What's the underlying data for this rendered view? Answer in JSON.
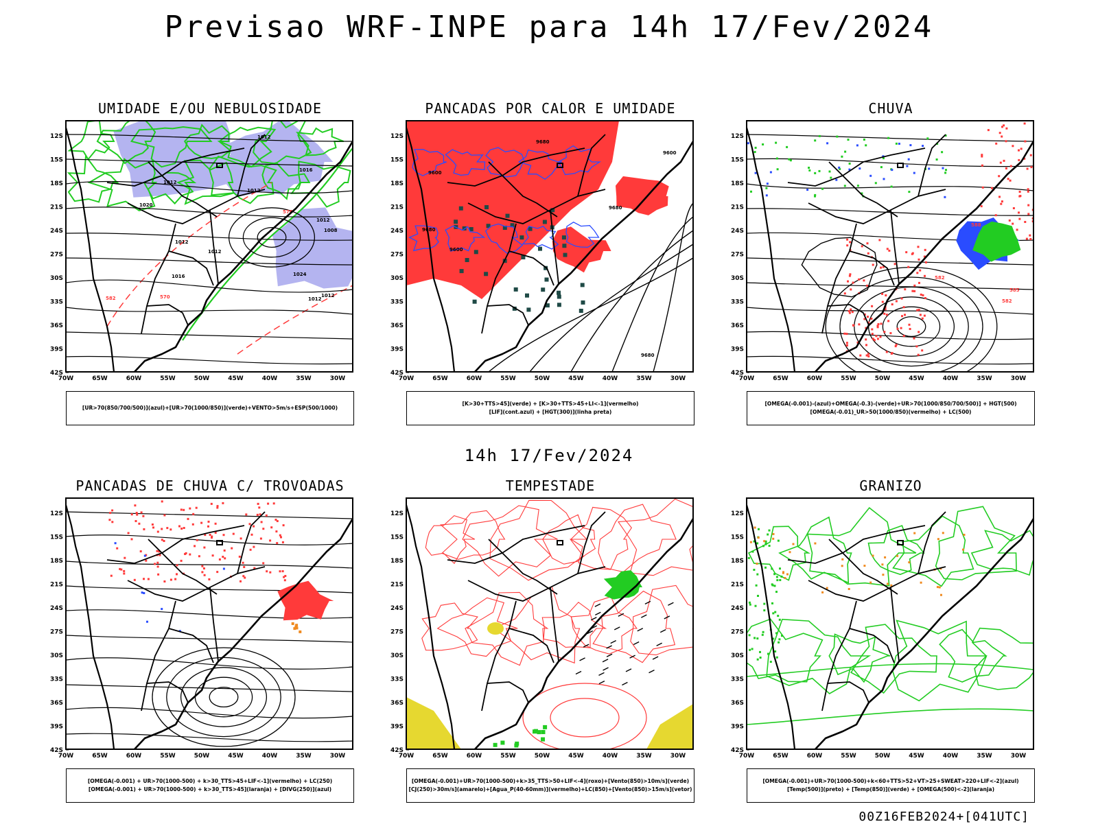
{
  "main_title": "Previsao WRF-INPE  para 14h 17/Fev/2024",
  "mid_date": "14h 17/Fev/2024",
  "footer_stamp": "00Z16FEB2024+[041UTC]",
  "lat_ticks": [
    "12S",
    "15S",
    "18S",
    "21S",
    "24S",
    "27S",
    "30S",
    "33S",
    "36S",
    "39S",
    "42S"
  ],
  "lon_ticks": [
    "70W",
    "65W",
    "60W",
    "55W",
    "50W",
    "45W",
    "40W",
    "35W",
    "30W"
  ],
  "colors": {
    "humid_blue": "#b4b4f0",
    "green": "#22cc22",
    "red": "#ff3a3a",
    "dark_teal": "#1f4a46",
    "blue": "#2a4cff",
    "orange": "#f08a20",
    "yellow": "#e6d830"
  },
  "panels": [
    {
      "title": "UMIDADE E/OU NEBULOSIDADE",
      "legend": [
        "[UR>70(850/700/500)](azul)+[UR>70(1000/850)](verde)+VENTO>5m/s+ESP(500/1000)"
      ],
      "labels": [
        "1012",
        "1012",
        "1012",
        "1008",
        "1012",
        "1012",
        "1016",
        "1012",
        "1012",
        "1016",
        "1020",
        "1024",
        "576",
        "570",
        "582",
        "1012"
      ]
    },
    {
      "title": "PANCADAS POR CALOR E UMIDADE",
      "legend": [
        "[K>30+TTS>45](verde) + [K>30+TTS>45+LI<-1](vermelho)",
        "[LIF](cont.azul) + [HGT(300)](linha preta)"
      ],
      "labels": [
        "9680",
        "9680",
        "9680",
        "9600",
        "9600",
        "9680",
        "9600"
      ]
    },
    {
      "title": "CHUVA",
      "legend": [
        "[OMEGA(-0.001)-(azul)+OMEGA(-0.3)-(verde)+UR>70(1000/850/700/500)] + HGT(500)",
        "[OMEGA(-0.01)_UR>50(1000/850)(vermelho) + LC(500)"
      ],
      "labels": [
        "582",
        "585",
        "588",
        "582"
      ]
    },
    {
      "title": "PANCADAS DE CHUVA C/ TROVOADAS",
      "legend": [
        "[OMEGA(-0.001) + UR>70(1000-500) + k>30_TTS>45+LIF<-1](vermelho) + LC(250)",
        "[OMEGA(-0.001) + UR>70(1000-500) + k>30_TTS>45](laranja) + [DIVG(250)](azul)"
      ],
      "labels": []
    },
    {
      "title": "TEMPESTADE",
      "legend": [
        "[OMEGA(-0.001)+UR>70(1000-500)+k>35_TTS>50+LIF<-4](roxo)+[Vento(850)>10m/s](verde)",
        "[CJ(250)>30m/s](amarelo)+[Agua_P(40-60mm)](vermelho)+LC(850)+[Vento(850)>15m/s](vetor)"
      ],
      "labels": []
    },
    {
      "title": "GRANIZO",
      "legend": [
        "[OMEGA(-0.001)+UR>70(1000-500)+k<60+TTS>52+VT>25+SWEAT>220+LIF<-2](azul)",
        "[Temp(500)](preto) + [Temp(850)](verde) + [OMEGA(500)<-2](laranja)"
      ],
      "labels": []
    }
  ]
}
